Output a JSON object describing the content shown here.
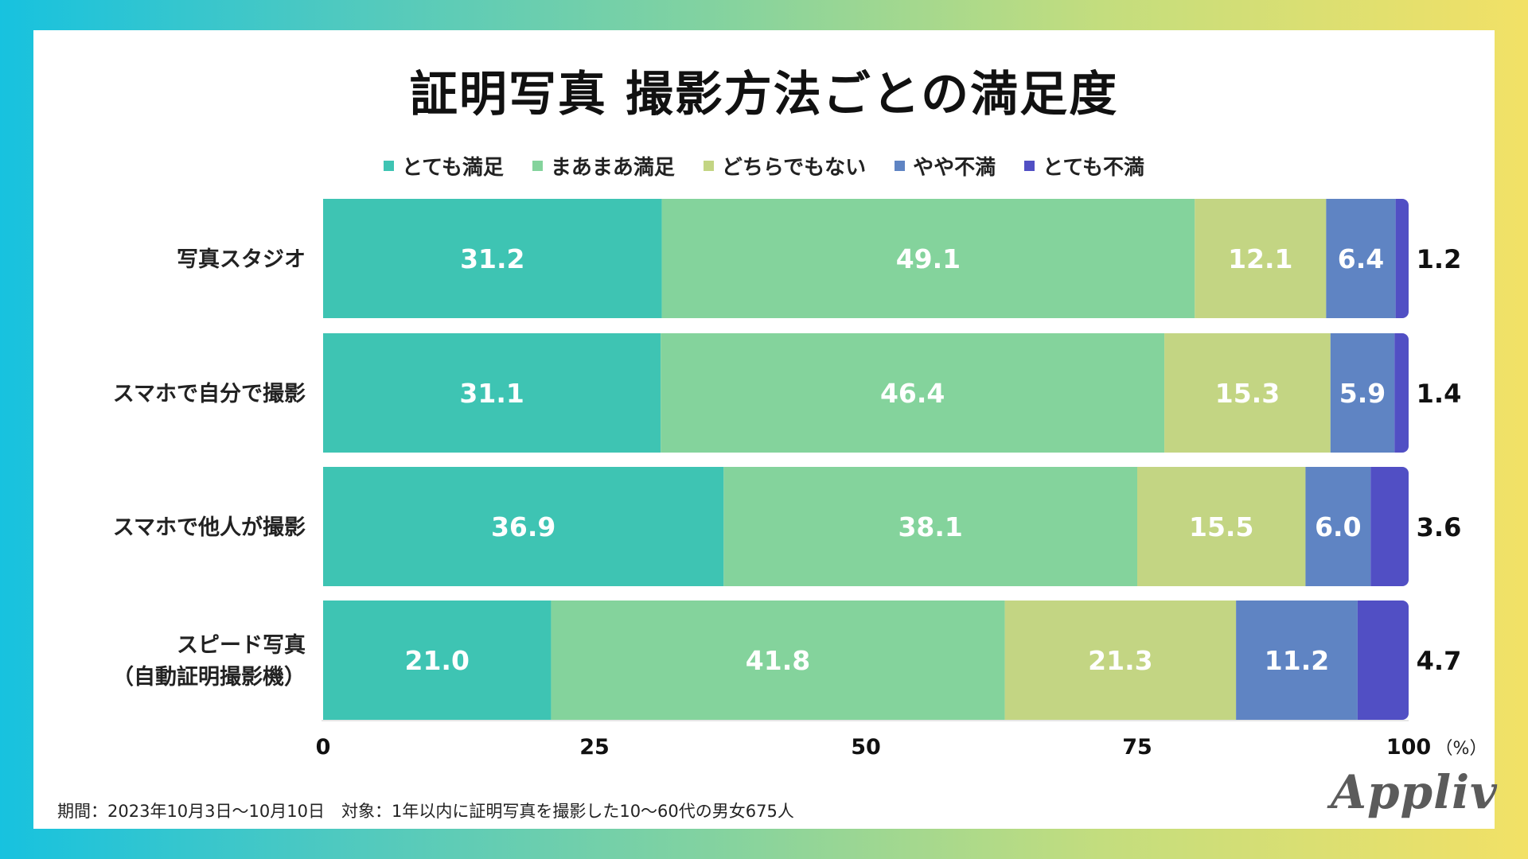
{
  "title": "証明写真 撮影方法ごとの満足度",
  "legend": [
    {
      "label": "とても満足",
      "color": "#3ec4b3"
    },
    {
      "label": "まあまあ満足",
      "color": "#84d39c"
    },
    {
      "label": "どちらでもない",
      "color": "#c3d583"
    },
    {
      "label": "やや不満",
      "color": "#5f84c3"
    },
    {
      "label": "とても不満",
      "color": "#514fc4"
    }
  ],
  "chart_data": {
    "type": "bar",
    "orientation": "horizontal",
    "stacked": true,
    "title": "証明写真 撮影方法ごとの満足度",
    "categories": [
      [
        "写真スタジオ"
      ],
      [
        "スマホで自分で撮影"
      ],
      [
        "スマホで他人が撮影"
      ],
      [
        "スピード写真",
        "（自動証明撮影機）"
      ]
    ],
    "series": [
      {
        "name": "とても満足",
        "color": "#3ec4b3",
        "values": [
          31.2,
          31.1,
          36.9,
          21.0
        ]
      },
      {
        "name": "まあまあ満足",
        "color": "#84d39c",
        "values": [
          49.1,
          46.4,
          38.1,
          41.8
        ]
      },
      {
        "name": "どちらでもない",
        "color": "#c3d583",
        "values": [
          12.1,
          15.3,
          15.5,
          21.3
        ]
      },
      {
        "name": "やや不満",
        "color": "#5f84c3",
        "values": [
          6.4,
          5.9,
          6.0,
          11.2
        ]
      },
      {
        "name": "とても不満",
        "color": "#514fc4",
        "values": [
          1.2,
          1.4,
          3.6,
          4.7
        ]
      }
    ],
    "xlim": [
      0,
      100
    ],
    "xticks": [
      "0",
      "25",
      "50",
      "75",
      "100"
    ],
    "xunit": "（%）"
  },
  "footnote": "期間：2023年10月3日〜10月10日　対象：1年以内に証明写真を撮影した10〜60代の男女675人",
  "logo": "Appliv"
}
